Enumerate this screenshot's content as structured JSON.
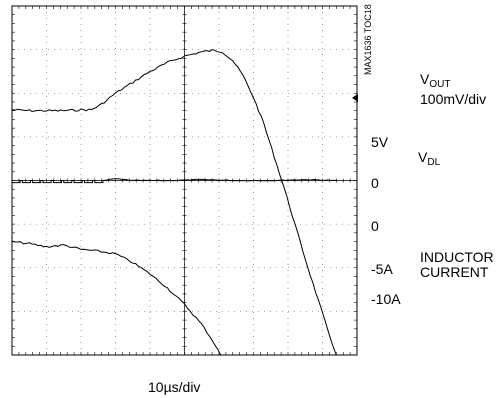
{
  "chart_data": {
    "type": "line",
    "title": "",
    "figure_id": "MAX1636 TOC18",
    "xlabel": "10µs/div",
    "grid": true,
    "divisions": {
      "x": 10,
      "y": 8
    },
    "traces": [
      {
        "id": "vout",
        "label_main": "V",
        "label_sub": "OUT",
        "scale": "100mV/div",
        "points": [
          [
            0,
            5.62
          ],
          [
            0.5,
            5.6
          ],
          [
            1,
            5.6
          ],
          [
            1.5,
            5.6
          ],
          [
            2,
            5.62
          ],
          [
            2.3,
            5.62
          ],
          [
            2.6,
            5.75
          ],
          [
            3,
            6.0
          ],
          [
            3.5,
            6.25
          ],
          [
            4,
            6.5
          ],
          [
            4.5,
            6.7
          ],
          [
            5,
            6.85
          ],
          [
            5.5,
            6.95
          ],
          [
            5.8,
            6.98
          ],
          [
            6.1,
            6.95
          ],
          [
            6.4,
            6.75
          ],
          [
            6.7,
            6.4
          ],
          [
            7,
            5.9
          ],
          [
            7.3,
            5.3
          ],
          [
            7.6,
            4.55
          ],
          [
            7.9,
            3.8
          ],
          [
            8.2,
            3.0
          ],
          [
            8.5,
            2.2
          ],
          [
            8.8,
            1.45
          ],
          [
            9.1,
            0.7
          ],
          [
            9.4,
            0.0
          ]
        ]
      },
      {
        "id": "vdl",
        "label_main": "V",
        "label_sub": "DL",
        "levels": [
          "5V",
          "0"
        ],
        "switching_until_div": 2.6,
        "pulse_period_div": 0.3,
        "points": [
          [
            0,
            4.0
          ],
          [
            2.65,
            4.0
          ],
          [
            3,
            4.04
          ],
          [
            3.5,
            4.0
          ],
          [
            4.5,
            4.0
          ],
          [
            5.5,
            4.02
          ],
          [
            6.5,
            4.0
          ],
          [
            7.5,
            4.0
          ],
          [
            8.5,
            4.02
          ],
          [
            9.4,
            4.0
          ]
        ]
      },
      {
        "id": "inductor_current",
        "label": "INDUCTOR\nCURRENT",
        "levels": [
          "0",
          "-5A",
          "-10A"
        ],
        "points": [
          [
            0,
            2.6
          ],
          [
            0.5,
            2.55
          ],
          [
            1,
            2.48
          ],
          [
            1.5,
            2.52
          ],
          [
            2,
            2.42
          ],
          [
            2.5,
            2.38
          ],
          [
            3,
            2.32
          ],
          [
            3.5,
            2.12
          ],
          [
            4,
            1.86
          ],
          [
            4.5,
            1.54
          ],
          [
            5,
            1.16
          ],
          [
            5.5,
            0.7
          ],
          [
            5.8,
            0.35
          ],
          [
            6.05,
            0.0
          ]
        ]
      }
    ],
    "right_labels": {
      "vout_main": "V",
      "vout_sub": "OUT",
      "vout_scale": "100mV/div",
      "vdl_5v": "5V",
      "vdl_main": "V",
      "vdl_sub": "DL",
      "vdl_0": "0",
      "il_0": "0",
      "il_m5": "-5A",
      "il_name_1": "INDUCTOR",
      "il_name_2": "CURRENT",
      "il_m10": "-10A"
    }
  }
}
